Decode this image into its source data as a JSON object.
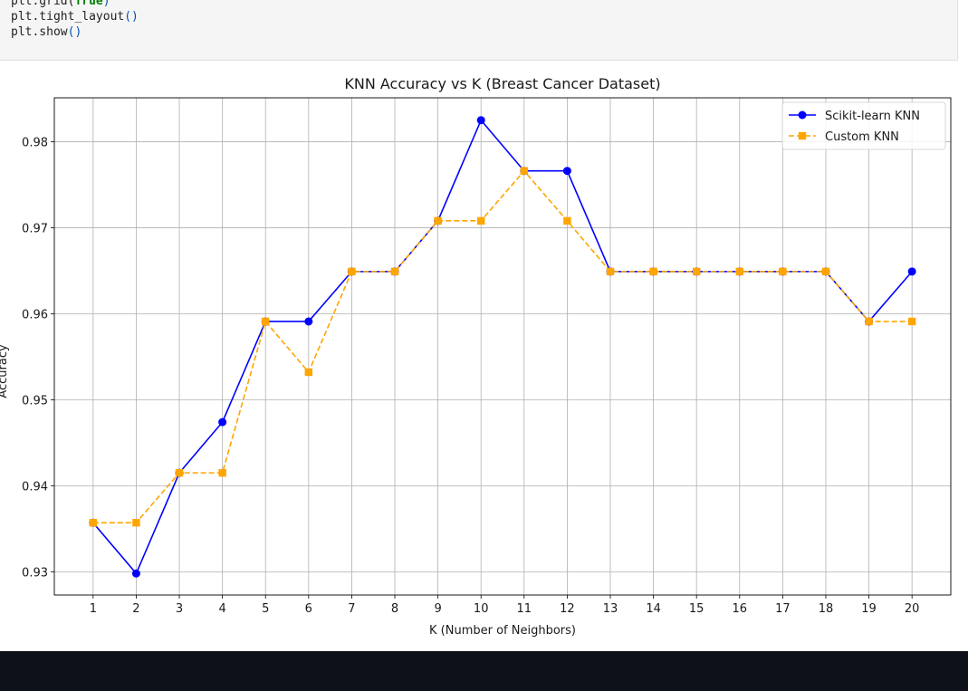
{
  "code": {
    "lines": [
      [
        {
          "t": "plt.grid(",
          "c": "plain"
        },
        {
          "t": "True",
          "c": "kw"
        },
        {
          "t": ")",
          "c": "paren"
        }
      ],
      [
        {
          "t": "plt.tight_layout",
          "c": "plain"
        },
        {
          "t": "()",
          "c": "paren"
        }
      ],
      [
        {
          "t": "plt.show",
          "c": "plain"
        },
        {
          "t": "()",
          "c": "paren"
        }
      ]
    ]
  },
  "chart_data": {
    "type": "line",
    "title": "KNN Accuracy vs K (Breast Cancer Dataset)",
    "xlabel": "K (Number of Neighbors)",
    "ylabel": "Accuracy",
    "x": [
      1,
      2,
      3,
      4,
      5,
      6,
      7,
      8,
      9,
      10,
      11,
      12,
      13,
      14,
      15,
      16,
      17,
      18,
      19,
      20
    ],
    "xlim": [
      0.1,
      20.9
    ],
    "ylim": [
      0.9273,
      0.9851
    ],
    "yticks": [
      0.93,
      0.94,
      0.95,
      0.96,
      0.97,
      0.98
    ],
    "ytick_labels": [
      "0.93",
      "0.94",
      "0.95",
      "0.96",
      "0.97",
      "0.98"
    ],
    "grid": true,
    "legend_position": "top-right",
    "series": [
      {
        "name": "Scikit-learn KNN",
        "color": "#0000ff",
        "marker": "circle",
        "linestyle": "solid",
        "values": [
          0.9357,
          0.9298,
          0.9415,
          0.9474,
          0.9591,
          0.9591,
          0.9649,
          0.9649,
          0.9708,
          0.9825,
          0.9766,
          0.9766,
          0.9649,
          0.9649,
          0.9649,
          0.9649,
          0.9649,
          0.9649,
          0.9591,
          0.9649
        ]
      },
      {
        "name": "Custom KNN",
        "color": "#ffa500",
        "marker": "square",
        "linestyle": "dashed",
        "values": [
          0.9357,
          0.9357,
          0.9415,
          0.9415,
          0.9591,
          0.9532,
          0.9649,
          0.9649,
          0.9708,
          0.9708,
          0.9766,
          0.9708,
          0.9649,
          0.9649,
          0.9649,
          0.9649,
          0.9649,
          0.9649,
          0.9591,
          0.9591
        ]
      }
    ]
  }
}
